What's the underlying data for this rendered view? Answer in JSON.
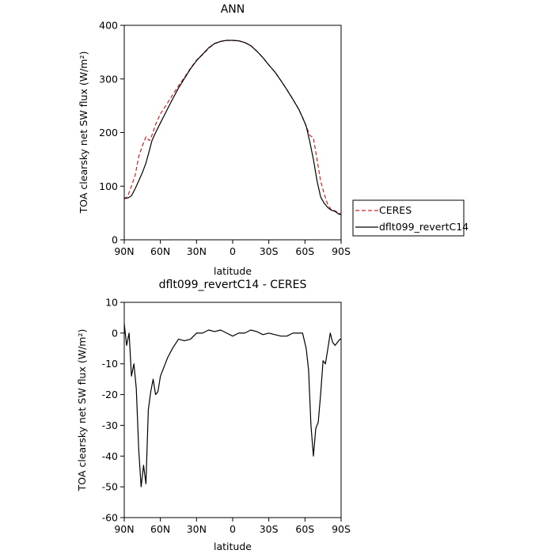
{
  "chart_data": [
    {
      "type": "line",
      "title": "ANN",
      "xlabel": "latitude",
      "ylabel": "TOA clearsky net SW flux (W/m²)",
      "ylim": [
        0,
        400
      ],
      "xlim": [
        90,
        -90
      ],
      "xticks": [
        {
          "value": 90,
          "label": "90N"
        },
        {
          "value": 60,
          "label": "60N"
        },
        {
          "value": 30,
          "label": "30N"
        },
        {
          "value": 0,
          "label": "0"
        },
        {
          "value": -30,
          "label": "30S"
        },
        {
          "value": -60,
          "label": "60S"
        },
        {
          "value": -90,
          "label": "90S"
        }
      ],
      "yticks": [
        0,
        100,
        200,
        300,
        400
      ],
      "grid": false,
      "legend": "right",
      "series": [
        {
          "name": "CERES",
          "color": "#d62020",
          "dash": true,
          "x": [
            90,
            87,
            84,
            81,
            78,
            75,
            72,
            69,
            67,
            64,
            60,
            55,
            50,
            45,
            40,
            35,
            30,
            25,
            20,
            15,
            10,
            5,
            0,
            -5,
            -10,
            -15,
            -20,
            -25,
            -30,
            -35,
            -40,
            -45,
            -50,
            -55,
            -58,
            -61,
            -64,
            -67,
            -70,
            -73,
            -76,
            -79,
            -82,
            -85,
            -88,
            -90
          ],
          "y": [
            75,
            82,
            100,
            120,
            155,
            175,
            192,
            185,
            195,
            215,
            235,
            252,
            270,
            287,
            303,
            320,
            335,
            345,
            357,
            366,
            370,
            372,
            372,
            371,
            368,
            362,
            352,
            340,
            326,
            313,
            297,
            280,
            262,
            243,
            228,
            212,
            195,
            190,
            150,
            110,
            85,
            65,
            56,
            54,
            50,
            48
          ]
        },
        {
          "name": "dflt099_revertC14",
          "color": "#000000",
          "dash": false,
          "x": [
            90,
            87,
            84,
            81,
            78,
            75,
            72,
            69,
            67,
            64,
            60,
            55,
            50,
            45,
            40,
            35,
            30,
            25,
            20,
            15,
            10,
            5,
            0,
            -5,
            -10,
            -15,
            -20,
            -25,
            -30,
            -35,
            -40,
            -45,
            -50,
            -55,
            -58,
            -61,
            -64,
            -67,
            -70,
            -73,
            -76,
            -79,
            -82,
            -85,
            -88,
            -90
          ],
          "y": [
            78,
            78,
            82,
            95,
            110,
            125,
            143,
            168,
            185,
            200,
            218,
            240,
            262,
            283,
            301,
            319,
            334,
            346,
            358,
            366,
            370,
            372,
            372,
            371,
            368,
            362,
            352,
            340,
            326,
            313,
            297,
            280,
            262,
            243,
            228,
            212,
            183,
            150,
            110,
            80,
            68,
            60,
            55,
            53,
            48,
            47
          ]
        }
      ]
    },
    {
      "type": "line",
      "title": "dflt099_revertC14 - CERES",
      "xlabel": "latitude",
      "ylabel": "TOA clearsky net SW flux (W/m²)",
      "ylim": [
        -60,
        10
      ],
      "xlim": [
        90,
        -90
      ],
      "xticks": [
        {
          "value": 90,
          "label": "90N"
        },
        {
          "value": 60,
          "label": "60N"
        },
        {
          "value": 30,
          "label": "30N"
        },
        {
          "value": 0,
          "label": "0"
        },
        {
          "value": -30,
          "label": "30S"
        },
        {
          "value": -60,
          "label": "60S"
        },
        {
          "value": -90,
          "label": "90S"
        }
      ],
      "yticks": [
        10,
        0,
        -10,
        -20,
        -30,
        -40,
        -50,
        -60
      ],
      "grid": false,
      "series": [
        {
          "color": "#000000",
          "x": [
            90,
            88,
            86,
            84,
            82,
            80,
            78,
            76,
            74,
            72,
            70,
            68,
            66,
            64,
            62,
            60,
            58,
            56,
            54,
            50,
            45,
            40,
            35,
            30,
            25,
            20,
            15,
            10,
            5,
            0,
            -5,
            -10,
            -15,
            -20,
            -25,
            -30,
            -35,
            -40,
            -45,
            -50,
            -55,
            -58,
            -61,
            -63,
            -65,
            -67,
            -69,
            -71,
            -73,
            -75,
            -77,
            -79,
            -81,
            -83,
            -85,
            -87,
            -89,
            -90
          ],
          "y": [
            3,
            -4,
            0,
            -14,
            -10,
            -18,
            -38,
            -50,
            -43,
            -49,
            -25,
            -19,
            -15,
            -20,
            -19,
            -14,
            -12,
            -10,
            -8,
            -5,
            -2,
            -2.5,
            -2,
            0,
            0,
            1,
            0.5,
            1,
            0,
            -1,
            0,
            0,
            1,
            0.5,
            -0.5,
            0,
            -0.5,
            -1,
            -1,
            0,
            0,
            0,
            -5,
            -12,
            -30,
            -40,
            -31,
            -29,
            -20,
            -9,
            -10,
            -5,
            0,
            -3,
            -4,
            -3,
            -2,
            -2
          ]
        }
      ]
    }
  ],
  "legend": {
    "items": [
      {
        "label": "CERES"
      },
      {
        "label": "dflt099_revertC14"
      }
    ]
  }
}
